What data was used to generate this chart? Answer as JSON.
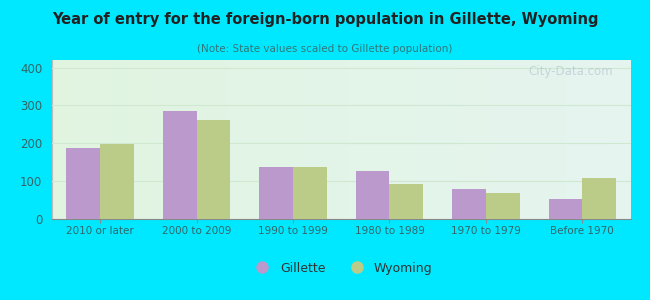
{
  "title": "Year of entry for the foreign-born population in Gillette, Wyoming",
  "subtitle": "(Note: State values scaled to Gillette population)",
  "categories": [
    "2010 or later",
    "2000 to 2009",
    "1990 to 1999",
    "1980 to 1989",
    "1970 to 1979",
    "Before 1970"
  ],
  "gillette_values": [
    188,
    285,
    138,
    127,
    80,
    52
  ],
  "wyoming_values": [
    197,
    262,
    138,
    92,
    70,
    107
  ],
  "gillette_color": "#bb99cc",
  "wyoming_color": "#bbcc88",
  "bar_width": 0.35,
  "ylim": [
    0,
    420
  ],
  "yticks": [
    0,
    100,
    200,
    300,
    400
  ],
  "bg_color": "#00e8ff",
  "title_color": "#222222",
  "subtitle_color": "#337777",
  "axis_label_color": "#336666",
  "grid_color": "#d0e8d0",
  "watermark": "City-Data.com",
  "legend_label_color": "#333333"
}
